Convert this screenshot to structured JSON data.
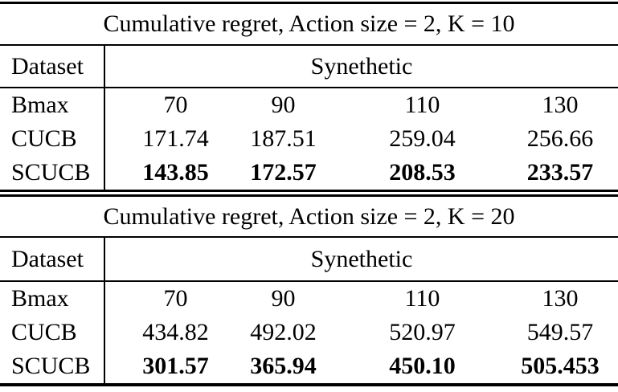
{
  "colors": {
    "text": "#000000",
    "rule": "#000000",
    "background": "#ffffff"
  },
  "tables": [
    {
      "title": "Cumulative regret, Action size = 2, K = 10",
      "header": {
        "dataset_label": "Dataset",
        "group_label": "Synethetic"
      },
      "rows": [
        {
          "label": "Bmax",
          "values": [
            "70",
            "90",
            "110",
            "130"
          ]
        },
        {
          "label": "CUCB",
          "values": [
            "171.74",
            "187.51",
            "259.04",
            "256.66"
          ]
        },
        {
          "label": "SCUCB",
          "values": [
            "143.85",
            "172.57",
            "208.53",
            "233.57"
          ]
        }
      ]
    },
    {
      "title": "Cumulative regret, Action size = 2, K = 20",
      "header": {
        "dataset_label": "Dataset",
        "group_label": "Synethetic"
      },
      "rows": [
        {
          "label": "Bmax",
          "values": [
            "70",
            "90",
            "110",
            "130"
          ]
        },
        {
          "label": "CUCB",
          "values": [
            "434.82",
            "492.02",
            "520.97",
            "549.57"
          ]
        },
        {
          "label": "SCUCB",
          "values": [
            "301.57",
            "365.94",
            "450.10",
            "505.453"
          ]
        }
      ]
    }
  ]
}
